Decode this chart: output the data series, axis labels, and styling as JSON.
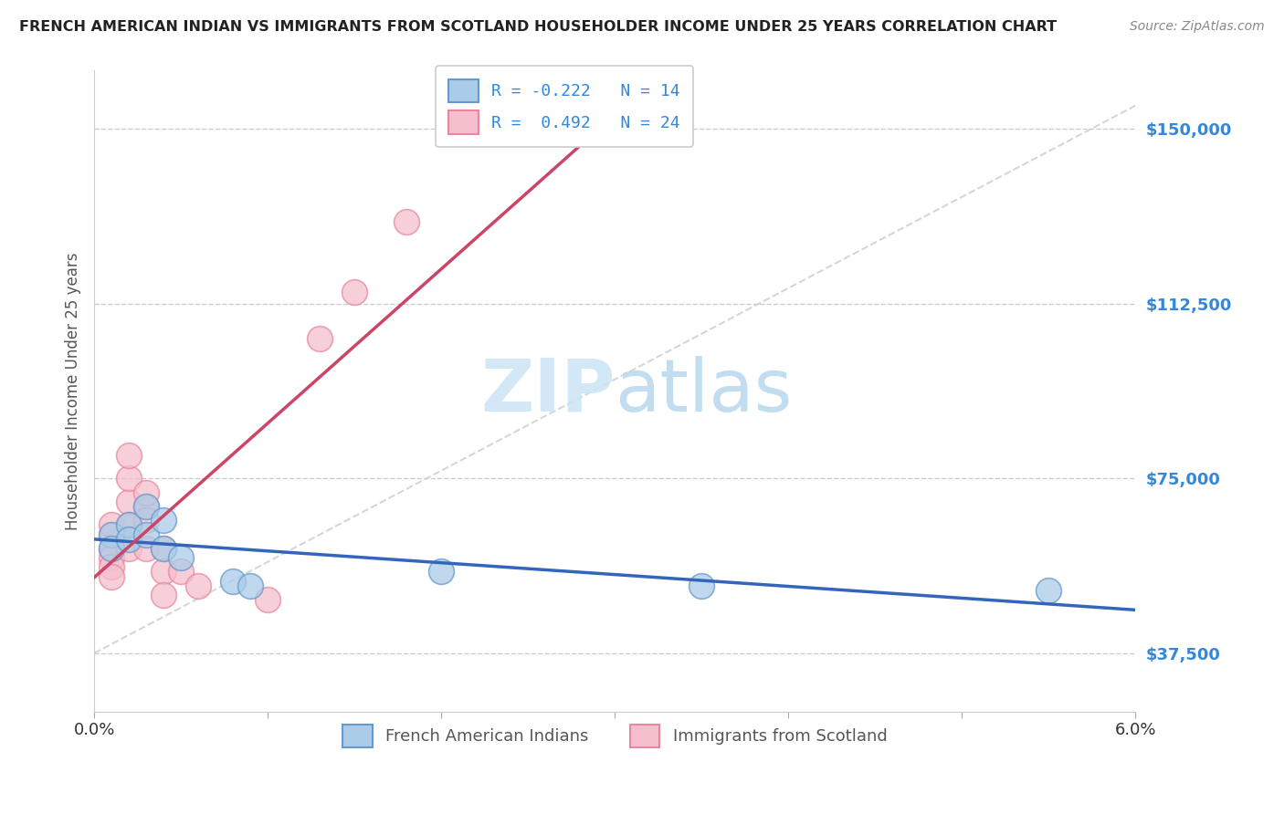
{
  "title": "FRENCH AMERICAN INDIAN VS IMMIGRANTS FROM SCOTLAND HOUSEHOLDER INCOME UNDER 25 YEARS CORRELATION CHART",
  "source": "Source: ZipAtlas.com",
  "ylabel": "Householder Income Under 25 years",
  "xlim": [
    0.0,
    0.06
  ],
  "ylim": [
    25000,
    162500
  ],
  "yticks": [
    37500,
    75000,
    112500,
    150000
  ],
  "ytick_labels": [
    "$37,500",
    "$75,000",
    "$112,500",
    "$150,000"
  ],
  "xticks": [
    0.0,
    0.01,
    0.02,
    0.03,
    0.04,
    0.05,
    0.06
  ],
  "xtick_labels": [
    "0.0%",
    "",
    "",
    "",
    "",
    "",
    "6.0%"
  ],
  "blue_R": -0.222,
  "blue_N": 14,
  "pink_R": 0.492,
  "pink_N": 24,
  "blue_color": "#aacce8",
  "pink_color": "#f5bfcc",
  "blue_edge": "#6699cc",
  "pink_edge": "#e888a0",
  "line_blue": "#3366bb",
  "line_pink": "#cc4466",
  "ref_line_color": "#cccccc",
  "watermark_color": "#cce4f5",
  "background_color": "#ffffff",
  "grid_color": "#cccccc",
  "title_color": "#222222",
  "axis_label_color": "#555555",
  "tick_label_color_x": "#333333",
  "tick_label_color_y": "#3388dd",
  "blue_points": [
    [
      0.001,
      63000
    ],
    [
      0.001,
      60000
    ],
    [
      0.002,
      65000
    ],
    [
      0.002,
      62000
    ],
    [
      0.003,
      69000
    ],
    [
      0.003,
      63000
    ],
    [
      0.004,
      66000
    ],
    [
      0.004,
      60000
    ],
    [
      0.005,
      58000
    ],
    [
      0.008,
      53000
    ],
    [
      0.009,
      52000
    ],
    [
      0.02,
      55000
    ],
    [
      0.035,
      52000
    ],
    [
      0.055,
      51000
    ]
  ],
  "pink_points": [
    [
      0.001,
      63000
    ],
    [
      0.001,
      60000
    ],
    [
      0.001,
      58000
    ],
    [
      0.001,
      56000
    ],
    [
      0.001,
      54000
    ],
    [
      0.001,
      65000
    ],
    [
      0.002,
      70000
    ],
    [
      0.002,
      75000
    ],
    [
      0.002,
      80000
    ],
    [
      0.002,
      65000
    ],
    [
      0.002,
      60000
    ],
    [
      0.003,
      69000
    ],
    [
      0.003,
      66000
    ],
    [
      0.003,
      72000
    ],
    [
      0.003,
      60000
    ],
    [
      0.004,
      60000
    ],
    [
      0.004,
      55000
    ],
    [
      0.004,
      50000
    ],
    [
      0.005,
      55000
    ],
    [
      0.006,
      52000
    ],
    [
      0.01,
      49000
    ],
    [
      0.013,
      105000
    ],
    [
      0.015,
      115000
    ],
    [
      0.018,
      130000
    ]
  ]
}
